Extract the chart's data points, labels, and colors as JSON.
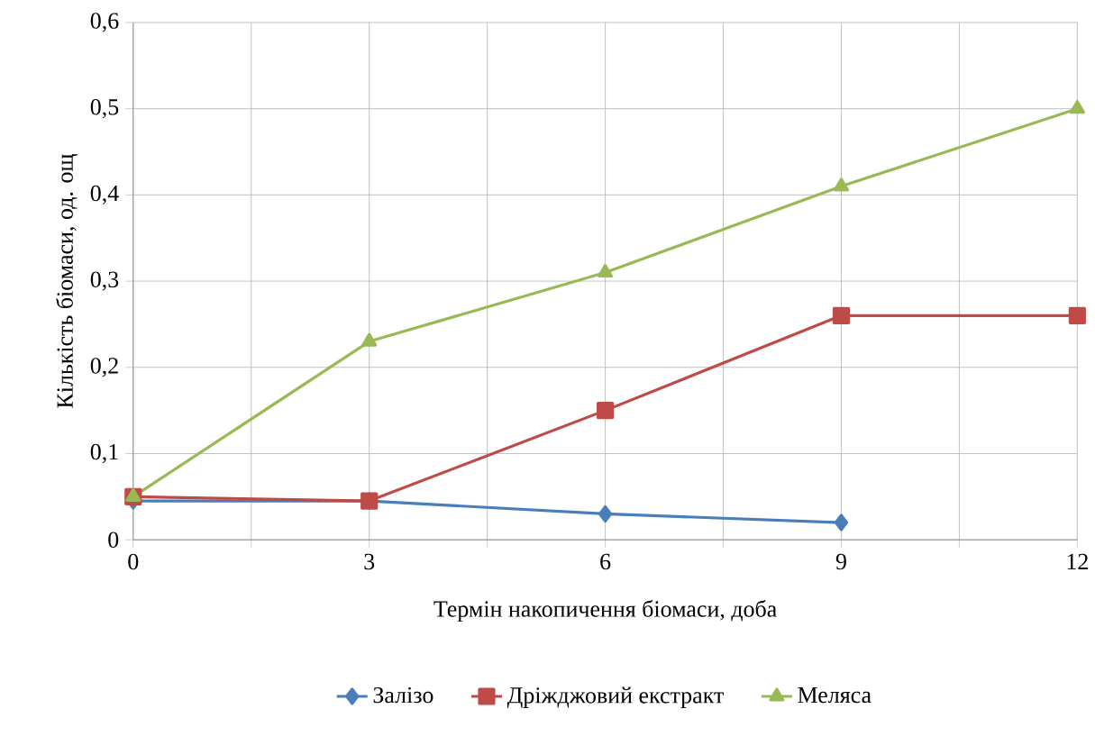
{
  "chart_data": {
    "type": "line",
    "xlabel": "Термін накопичення біомаси, доба",
    "ylabel": "Кількість біомаси, од. ощ",
    "x": [
      0,
      3,
      6,
      9,
      12
    ],
    "series": [
      {
        "name": "Залізо",
        "color": "#4a7ebb",
        "marker": "diamond",
        "x": [
          0,
          3,
          6,
          9
        ],
        "values": [
          0.045,
          0.045,
          0.03,
          0.02
        ]
      },
      {
        "name": "Дріжджовий екстракт",
        "color": "#be4b48",
        "marker": "square",
        "values": [
          0.05,
          0.045,
          0.15,
          0.26,
          0.26
        ]
      },
      {
        "name": "Меляса",
        "color": "#98b954",
        "marker": "triangle",
        "values": [
          0.05,
          0.23,
          0.31,
          0.41,
          0.5
        ]
      }
    ],
    "xlim": [
      0,
      12
    ],
    "xticks": [
      0,
      {
        "value": 1.5,
        "label": null
      },
      3,
      {
        "value": 4.5,
        "label": null
      },
      6,
      {
        "value": 7.5,
        "label": null
      },
      9,
      {
        "value": 10.5,
        "label": null
      },
      12
    ],
    "ylim": [
      0,
      0.6
    ],
    "yticks": [
      0,
      {
        "value": 0.1,
        "label": "0,1"
      },
      {
        "value": 0.2,
        "label": "0,2"
      },
      {
        "value": 0.3,
        "label": "0,3"
      },
      {
        "value": 0.4,
        "label": "0,4"
      },
      {
        "value": 0.5,
        "label": "0,5"
      },
      {
        "value": 0.6,
        "label": "0,6"
      }
    ],
    "grid": true,
    "legend": "bottom",
    "line_style": "solid"
  }
}
